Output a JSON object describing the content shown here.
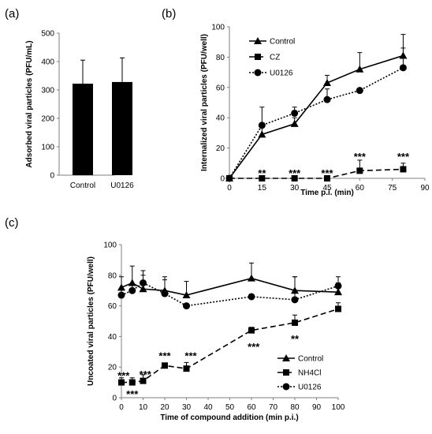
{
  "chart_data": [
    {
      "panel_label": "(a)",
      "type": "bar",
      "categories": [
        "Control",
        "U0126"
      ],
      "values": [
        322,
        328
      ],
      "errors": [
        83,
        85
      ],
      "ylabel": "Adsorbed viral particles (PFU/mL)",
      "xlabel": "",
      "ylim": [
        0,
        500
      ],
      "yticks": [
        0,
        100,
        200,
        300,
        400,
        500
      ],
      "bar_color": "#000000",
      "grid": false
    },
    {
      "panel_label": "(b)",
      "type": "line",
      "xlabel": "Time p.i. (min)",
      "ylabel": "Internalized viral particles (PFU/well)",
      "xlim": [
        0,
        90
      ],
      "ylim": [
        0,
        100
      ],
      "xticks": [
        0,
        15,
        30,
        45,
        60,
        75,
        90
      ],
      "yticks": [
        0,
        20,
        40,
        60,
        80,
        100
      ],
      "legend_position": "top-left",
      "grid": false,
      "series": [
        {
          "name": "Control",
          "marker": "triangle",
          "style": "solid",
          "x": [
            0,
            15,
            30,
            45,
            60,
            80
          ],
          "y": [
            0,
            29,
            36,
            63,
            72,
            81
          ],
          "err": [
            0,
            6,
            4,
            5,
            11,
            14
          ]
        },
        {
          "name": "CZ",
          "marker": "square",
          "style": "dashed",
          "x": [
            0,
            15,
            30,
            45,
            60,
            80
          ],
          "y": [
            0,
            0,
            0,
            0,
            5,
            6
          ],
          "err": [
            0,
            0,
            0,
            0,
            7,
            4
          ]
        },
        {
          "name": "U0126",
          "marker": "circle",
          "style": "dotted",
          "x": [
            0,
            15,
            30,
            45,
            60,
            80
          ],
          "y": [
            0,
            35,
            43,
            52,
            58,
            73
          ],
          "err": [
            0,
            12,
            4,
            7,
            0,
            13
          ]
        }
      ],
      "annotations": [
        {
          "text": "**",
          "x": 15,
          "y": 1
        },
        {
          "text": "***",
          "x": 30,
          "y": 1
        },
        {
          "text": "***",
          "x": 45,
          "y": 1
        },
        {
          "text": "***",
          "x": 60,
          "y": 12
        },
        {
          "text": "***",
          "x": 80,
          "y": 12
        }
      ]
    },
    {
      "panel_label": "(c)",
      "type": "line",
      "xlabel": "Time of compound addition (min p.i.)",
      "ylabel": "Uncoated viral particles (PFU/well)",
      "xlim": [
        0,
        100
      ],
      "ylim": [
        0,
        100
      ],
      "xticks": [
        0,
        10,
        20,
        30,
        40,
        50,
        60,
        70,
        80,
        90,
        100
      ],
      "yticks": [
        0,
        20,
        40,
        60,
        80,
        100
      ],
      "legend_position": "bottom-right",
      "grid": false,
      "series": [
        {
          "name": "Control",
          "marker": "triangle",
          "style": "solid",
          "x": [
            0,
            5,
            10,
            20,
            30,
            60,
            80,
            100
          ],
          "y": [
            72,
            75,
            71,
            70,
            67,
            78,
            70,
            69
          ],
          "err": [
            7,
            11,
            9,
            9,
            9,
            10,
            9,
            6
          ]
        },
        {
          "name": "NH4Cl",
          "marker": "square",
          "style": "dashed",
          "x": [
            0,
            5,
            10,
            20,
            30,
            60,
            80,
            100
          ],
          "y": [
            10,
            10,
            11,
            21,
            19,
            44,
            49,
            58
          ],
          "err": [
            3,
            3,
            4,
            0,
            4,
            2,
            5,
            4
          ]
        },
        {
          "name": "U0126",
          "marker": "circle",
          "style": "dotted",
          "x": [
            0,
            5,
            10,
            20,
            30,
            60,
            80,
            100
          ],
          "y": [
            67,
            70,
            75,
            68,
            60,
            66,
            64,
            73
          ],
          "err": [
            4,
            4,
            8,
            9,
            0,
            0,
            15,
            6
          ]
        }
      ],
      "annotations": [
        {
          "text": "***",
          "x": 1,
          "y": 12
        },
        {
          "text": "***",
          "x": 5,
          "y": 0
        },
        {
          "text": "***",
          "x": 11,
          "y": 13
        },
        {
          "text": "***",
          "x": 20,
          "y": 25
        },
        {
          "text": "***",
          "x": 32,
          "y": 25
        },
        {
          "text": "***",
          "x": 61,
          "y": 31
        },
        {
          "text": "**",
          "x": 80,
          "y": 36
        }
      ]
    }
  ]
}
